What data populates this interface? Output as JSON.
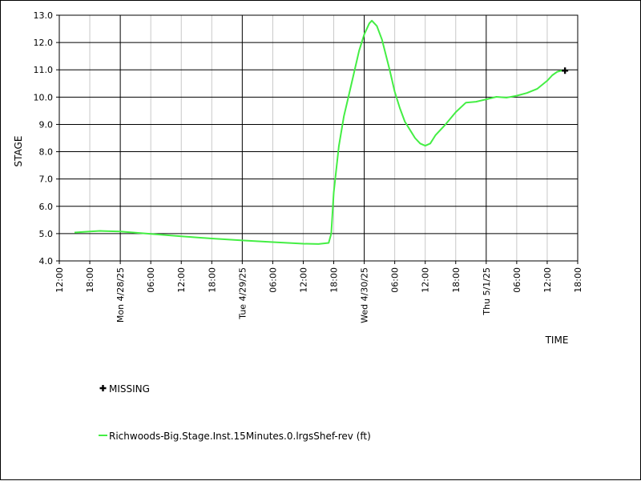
{
  "chart_data": {
    "type": "line",
    "xlabel": "TIME",
    "ylabel": "STAGE",
    "ylim": [
      4.0,
      13.0
    ],
    "yticks": [
      4.0,
      5.0,
      6.0,
      7.0,
      8.0,
      9.0,
      10.0,
      11.0,
      12.0,
      13.0
    ],
    "ytick_labels": [
      "4.0",
      "5.0",
      "6.0",
      "7.0",
      "8.0",
      "9.0",
      "10.0",
      "11.0",
      "12.0",
      "13.0"
    ],
    "xlim": [
      "2025-04-27T12:00",
      "2025-05-01T18:00"
    ],
    "x_ticks": [
      {
        "t": "2025-04-27T12:00",
        "label": "12:00",
        "major": false
      },
      {
        "t": "2025-04-27T18:00",
        "label": "18:00",
        "major": false
      },
      {
        "t": "2025-04-28T00:00",
        "label": "Mon 4/28/25",
        "major": true
      },
      {
        "t": "2025-04-28T06:00",
        "label": "06:00",
        "major": false
      },
      {
        "t": "2025-04-28T12:00",
        "label": "12:00",
        "major": false
      },
      {
        "t": "2025-04-28T18:00",
        "label": "18:00",
        "major": false
      },
      {
        "t": "2025-04-29T00:00",
        "label": "Tue 4/29/25",
        "major": true
      },
      {
        "t": "2025-04-29T06:00",
        "label": "06:00",
        "major": false
      },
      {
        "t": "2025-04-29T12:00",
        "label": "12:00",
        "major": false
      },
      {
        "t": "2025-04-29T18:00",
        "label": "18:00",
        "major": false
      },
      {
        "t": "2025-04-30T00:00",
        "label": "Wed 4/30/25",
        "major": true
      },
      {
        "t": "2025-04-30T06:00",
        "label": "06:00",
        "major": false
      },
      {
        "t": "2025-04-30T12:00",
        "label": "12:00",
        "major": false
      },
      {
        "t": "2025-04-30T18:00",
        "label": "18:00",
        "major": false
      },
      {
        "t": "2025-05-01T00:00",
        "label": "Thu 5/1/25",
        "major": true
      },
      {
        "t": "2025-05-01T06:00",
        "label": "06:00",
        "major": false
      },
      {
        "t": "2025-05-01T12:00",
        "label": "12:00",
        "major": false
      },
      {
        "t": "2025-05-01T18:00",
        "label": "18:00",
        "major": false
      }
    ],
    "series": [
      {
        "name": "Richwoods-Big.Stage.Inst.15Minutes.0.lrgsShef-rev (ft)",
        "color": "#44ee44",
        "points": [
          [
            "2025-04-27T15:00",
            5.04
          ],
          [
            "2025-04-27T18:00",
            5.08
          ],
          [
            "2025-04-27T20:00",
            5.1
          ],
          [
            "2025-04-28T00:00",
            5.08
          ],
          [
            "2025-04-28T06:00",
            4.99
          ],
          [
            "2025-04-28T12:00",
            4.9
          ],
          [
            "2025-04-28T18:00",
            4.82
          ],
          [
            "2025-04-29T00:00",
            4.75
          ],
          [
            "2025-04-29T06:00",
            4.69
          ],
          [
            "2025-04-29T12:00",
            4.63
          ],
          [
            "2025-04-29T15:00",
            4.62
          ],
          [
            "2025-04-29T17:00",
            4.66
          ],
          [
            "2025-04-29T17:30",
            5.0
          ],
          [
            "2025-04-29T18:00",
            6.5
          ],
          [
            "2025-04-29T19:00",
            8.2
          ],
          [
            "2025-04-29T20:00",
            9.3
          ],
          [
            "2025-04-29T21:00",
            10.1
          ],
          [
            "2025-04-29T22:00",
            10.9
          ],
          [
            "2025-04-29T23:00",
            11.7
          ],
          [
            "2025-04-30T00:00",
            12.3
          ],
          [
            "2025-04-30T01:00",
            12.7
          ],
          [
            "2025-04-30T01:30",
            12.8
          ],
          [
            "2025-04-30T02:30",
            12.6
          ],
          [
            "2025-04-30T03:30",
            12.1
          ],
          [
            "2025-04-30T05:00",
            11.0
          ],
          [
            "2025-04-30T06:00",
            10.2
          ],
          [
            "2025-04-30T07:00",
            9.6
          ],
          [
            "2025-04-30T08:00",
            9.1
          ],
          [
            "2025-04-30T09:00",
            8.8
          ],
          [
            "2025-04-30T10:00",
            8.5
          ],
          [
            "2025-04-30T11:00",
            8.3
          ],
          [
            "2025-04-30T12:00",
            8.22
          ],
          [
            "2025-04-30T13:00",
            8.3
          ],
          [
            "2025-04-30T14:00",
            8.6
          ],
          [
            "2025-04-30T16:00",
            9.0
          ],
          [
            "2025-04-30T18:00",
            9.45
          ],
          [
            "2025-04-30T20:00",
            9.8
          ],
          [
            "2025-04-30T22:00",
            9.83
          ],
          [
            "2025-05-01T00:00",
            9.92
          ],
          [
            "2025-05-01T02:00",
            10.01
          ],
          [
            "2025-05-01T04:00",
            9.98
          ],
          [
            "2025-05-01T06:00",
            10.05
          ],
          [
            "2025-05-01T08:00",
            10.15
          ],
          [
            "2025-05-01T10:00",
            10.3
          ],
          [
            "2025-05-01T12:00",
            10.6
          ],
          [
            "2025-05-01T13:00",
            10.8
          ],
          [
            "2025-05-01T14:00",
            10.93
          ],
          [
            "2025-05-01T15:00",
            10.98
          ]
        ]
      }
    ],
    "missing": {
      "name": "MISSING",
      "color": "#000000",
      "points": [
        [
          "2025-05-01T15:30",
          10.97
        ]
      ]
    },
    "grid": true
  }
}
